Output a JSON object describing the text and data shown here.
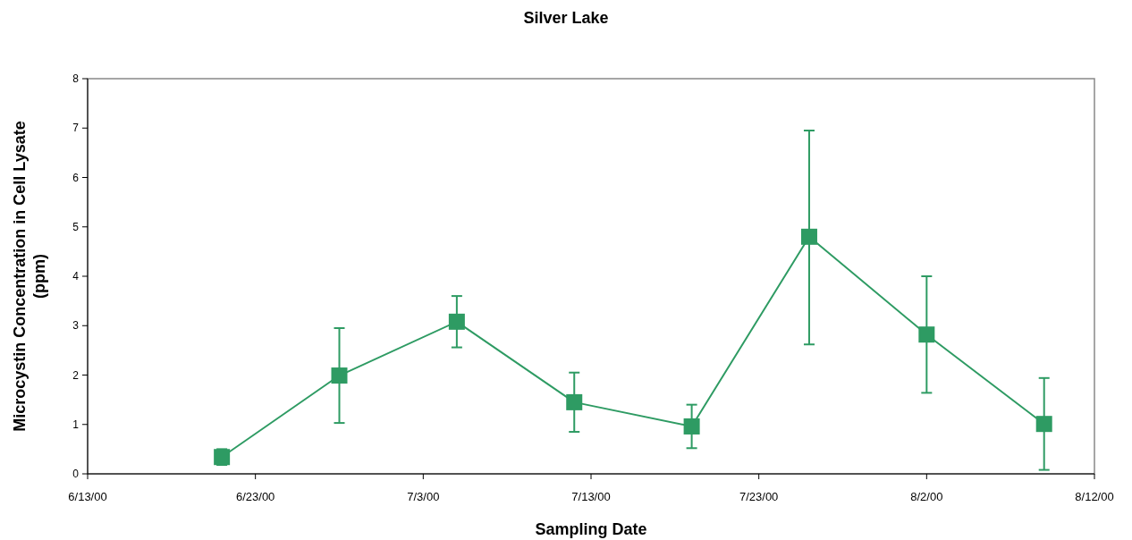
{
  "chart_data": {
    "type": "line",
    "title": "Silver Lake",
    "xlabel": "Sampling Date",
    "ylabel": "Microcystin Concentration in Cell Lysate (ppm)",
    "x": [
      "2000-06-21",
      "2000-06-28",
      "2000-07-05",
      "2000-07-12",
      "2000-07-19",
      "2000-07-26",
      "2000-08-02",
      "2000-08-09"
    ],
    "series": [
      {
        "color": "#2e9b63",
        "values": [
          0.34,
          1.99,
          3.08,
          1.45,
          0.96,
          4.8,
          2.82,
          1.01
        ],
        "errors": [
          0.16,
          0.96,
          0.52,
          0.6,
          0.44,
          [
            2.62,
            6.95
          ],
          1.18,
          0.93
        ]
      }
    ],
    "xlim": [
      "2000-06-13",
      "2000-08-12"
    ],
    "xticks": [
      {
        "value": "2000-06-13",
        "label": "6/13/00"
      },
      {
        "value": "2000-06-23",
        "label": "6/23/00"
      },
      {
        "value": "2000-07-03",
        "label": "7/3/00"
      },
      {
        "value": "2000-07-13",
        "label": "7/13/00"
      },
      {
        "value": "2000-07-23",
        "label": "7/23/00"
      },
      {
        "value": "2000-08-02",
        "label": "8/2/00"
      },
      {
        "value": "2000-08-12",
        "label": "8/12/00"
      }
    ],
    "ylim": [
      0,
      8
    ],
    "yticks": [
      0,
      1,
      2,
      3,
      4,
      5,
      6,
      7,
      8
    ],
    "grid": false,
    "marker": "square",
    "line_style": "solid"
  }
}
